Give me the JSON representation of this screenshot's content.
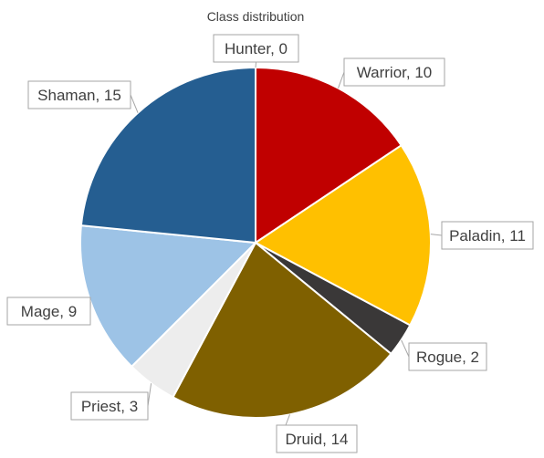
{
  "chart_data": {
    "type": "pie",
    "title": "Class distribution",
    "categories": [
      "Warrior",
      "Paladin",
      "Rogue",
      "Druid",
      "Priest",
      "Mage",
      "Shaman",
      "Hunter"
    ],
    "values": [
      10,
      11,
      2,
      14,
      3,
      9,
      15,
      0
    ],
    "colors": [
      "#c00000",
      "#ffc000",
      "#3a3838",
      "#7f6000",
      "#ededed",
      "#9dc3e6",
      "#255e91",
      "#ffffff"
    ],
    "data_labels": [
      "Warrior, 10",
      "Paladin, 11",
      "Rogue, 2",
      "Druid, 14",
      "Priest, 3",
      "Mage, 9",
      "Shaman, 15",
      "Hunter, 0"
    ],
    "start_angle": "12 o'clock",
    "direction": "clockwise",
    "legend": "none"
  }
}
